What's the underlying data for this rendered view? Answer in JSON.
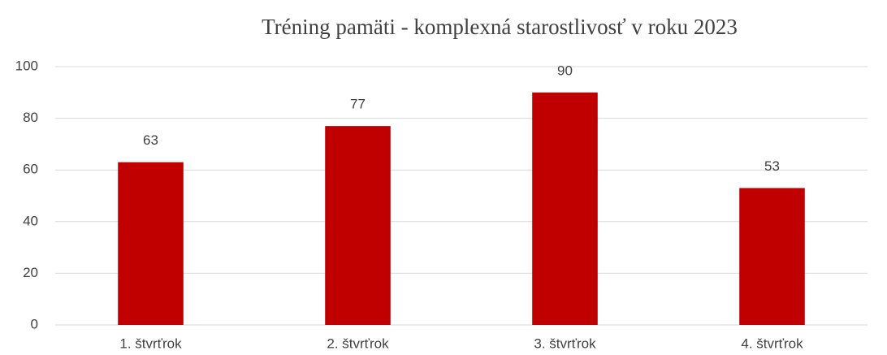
{
  "chart_data": {
    "type": "bar",
    "title": "Tréning pamäti - komplexná starostlivosť v roku 2023",
    "categories": [
      "1. štvrťrok",
      "2. štvrťrok",
      "3. štvrťrok",
      "4. štvrťrok"
    ],
    "values": [
      63,
      77,
      90,
      53
    ],
    "color": "#c00000",
    "ylim": [
      0,
      100
    ],
    "yticks": [
      0,
      20,
      40,
      60,
      80,
      100
    ],
    "grid": true,
    "data_labels": true
  }
}
